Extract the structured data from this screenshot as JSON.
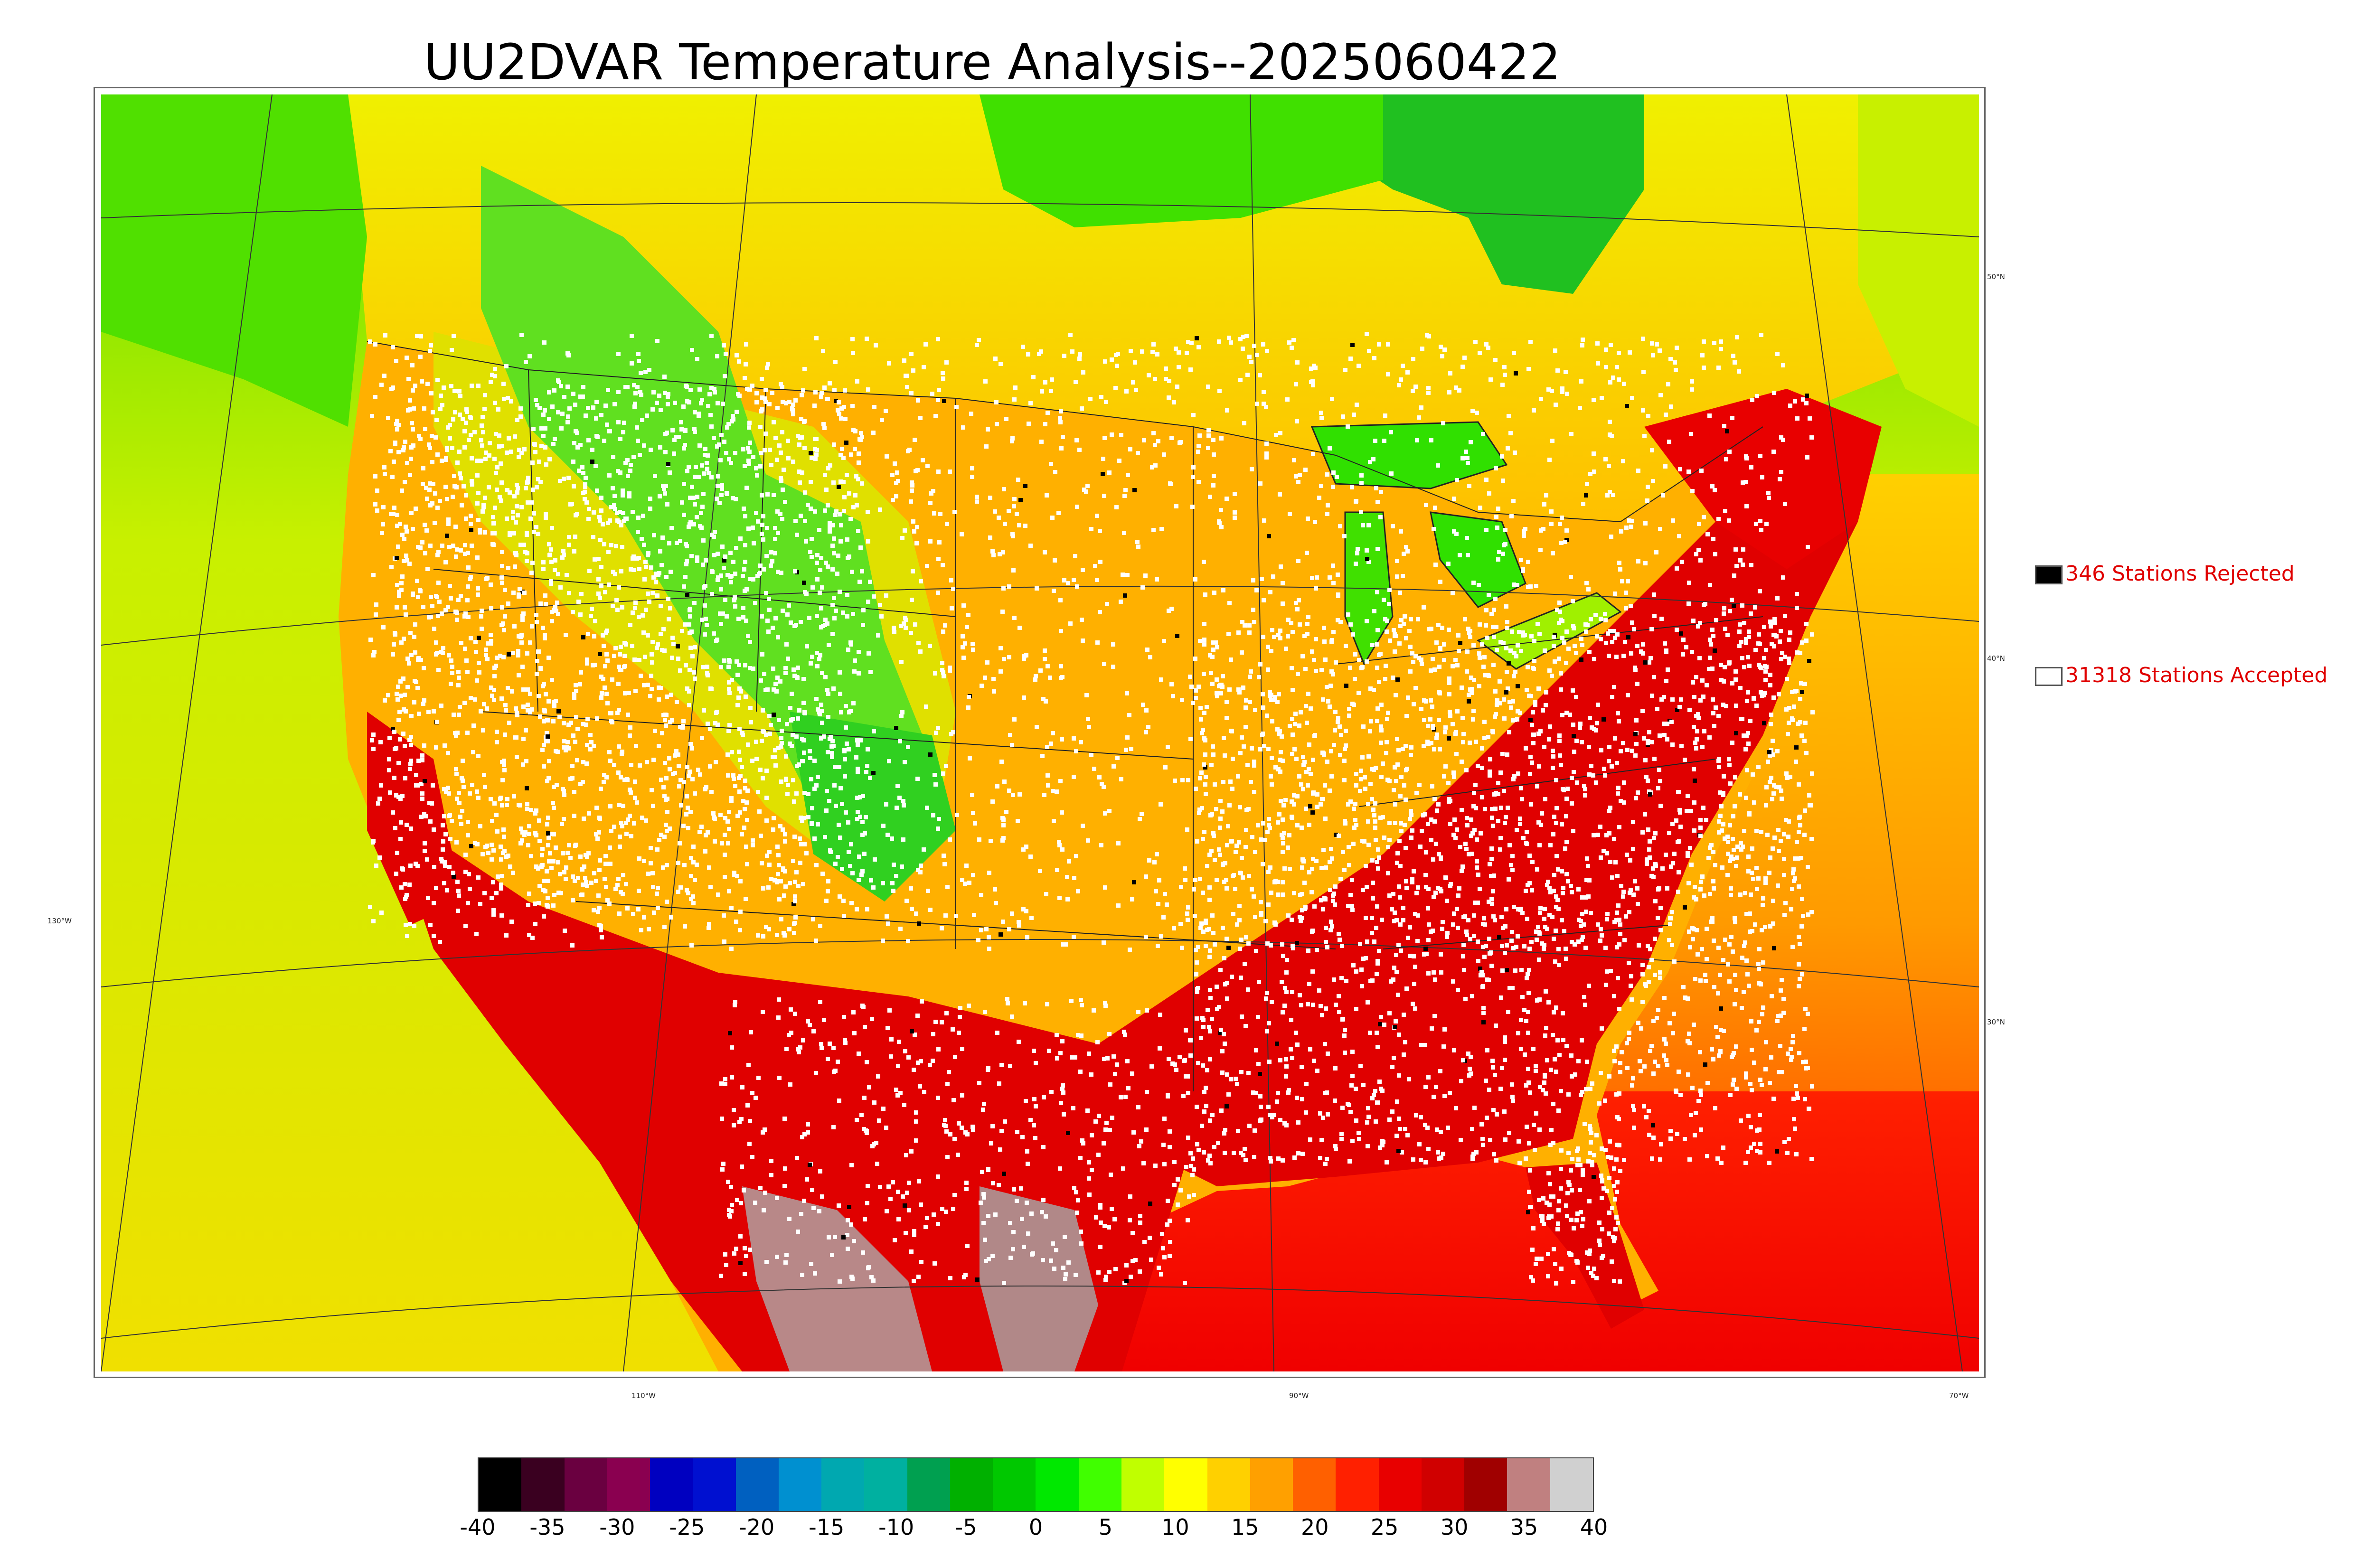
{
  "title": "UU2DVAR Temperature Analysis--2025060422",
  "legend": {
    "rejected": {
      "label": "346 Stations Rejected",
      "color": "#000000"
    },
    "accepted": {
      "label": "31318 Stations Accepted",
      "color": "#ffffff"
    }
  },
  "grid_labels": {
    "lat_50": "50°N",
    "lat_40": "40°N",
    "lat_30": "30°N",
    "lon_130": "130°W",
    "lon_110": "110°W",
    "lon_90": "90°W",
    "lon_70": "70°W"
  },
  "colorbar": {
    "min": -40,
    "max": 40,
    "ticks": [
      "-40",
      "-35",
      "-30",
      "-25",
      "-20",
      "-15",
      "-10",
      "-5",
      "0",
      "5",
      "10",
      "15",
      "20",
      "25",
      "30",
      "35",
      "40"
    ],
    "colors": [
      "#000000",
      "#3a0020",
      "#6a0040",
      "#8a0050",
      "#0000c0",
      "#0010d0",
      "#0060c0",
      "#0090d0",
      "#00a8b0",
      "#00b0a0",
      "#00a050",
      "#00b000",
      "#00c800",
      "#00e800",
      "#40ff00",
      "#c0ff00",
      "#ffff00",
      "#ffd000",
      "#ffa000",
      "#ff6000",
      "#ff2000",
      "#e80000",
      "#d00000",
      "#a00000",
      "#c08080",
      "#d0d0d0"
    ]
  },
  "map": {
    "region": "CONUS",
    "variable": "Temperature",
    "colors": {
      "hot": "#e00000",
      "warm": "#ff9a00",
      "mild": "#e6f000",
      "cool": "#30e000",
      "cold": "#00b030",
      "extreme": "#a0a0a0",
      "ocean_south": "#ff4000",
      "ocean_pacific": "#d8f000",
      "accepted_station": "#ffffff",
      "rejected_station": "#000000"
    }
  }
}
